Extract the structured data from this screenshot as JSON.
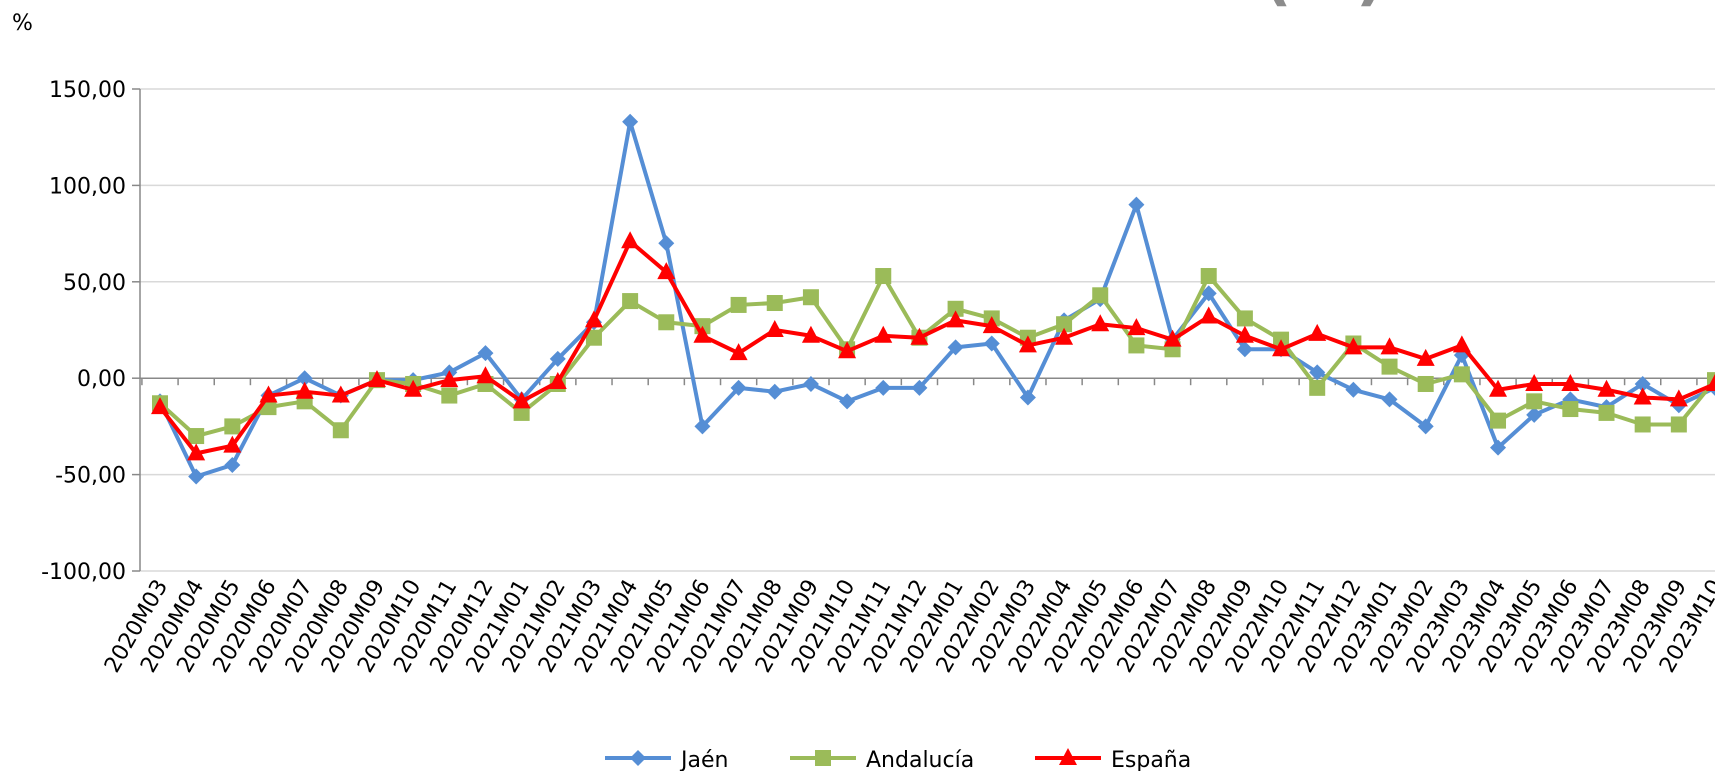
{
  "chart_data": {
    "type": "line",
    "title": "DE LAS EXPORTACIONES (%)",
    "y_label": "%",
    "categories": [
      "2020M03",
      "2020M04",
      "2020M05",
      "2020M06",
      "2020M07",
      "2020M08",
      "2020M09",
      "2020M10",
      "2020M11",
      "2020M12",
      "2021M01",
      "2021M02",
      "2021M03",
      "2021M04",
      "2021M05",
      "2021M06",
      "2021M07",
      "2021M08",
      "2021M09",
      "2021M10",
      "2021M11",
      "2021M12",
      "2022M01",
      "2022M02",
      "2022M03",
      "2022M04",
      "2022M05",
      "2022M06",
      "2022M07",
      "2022M08",
      "2022M09",
      "2022M10",
      "2022M11",
      "2022M12",
      "2023M01",
      "2023M02",
      "2023M03",
      "2023M04",
      "2023M05",
      "2023M06",
      "2023M07",
      "2023M08",
      "2023M09",
      "2023M10"
    ],
    "series": [
      {
        "name": "Jaén",
        "color": "#558ed5",
        "marker": "diamond",
        "values": [
          -12,
          -51,
          -45,
          -9,
          0,
          -9,
          -1,
          -1,
          3,
          13,
          -11,
          10,
          29,
          133,
          70,
          -25,
          -5,
          -7,
          -3,
          -12,
          -5,
          -5,
          16,
          18,
          -10,
          30,
          41,
          90,
          20,
          44,
          15,
          15,
          3,
          -6,
          -11,
          -25,
          12,
          -36,
          -19,
          -11,
          -15,
          -3,
          -14,
          -5
        ]
      },
      {
        "name": "Andalucía",
        "color": "#9bbb59",
        "marker": "square",
        "values": [
          -13,
          -30,
          -25,
          -15,
          -12,
          -27,
          -1,
          -3,
          -9,
          -3,
          -18,
          -3,
          21,
          40,
          29,
          27,
          38,
          39,
          42,
          15,
          53,
          21,
          36,
          31,
          21,
          28,
          43,
          17,
          15,
          53,
          31,
          20,
          -5,
          18,
          6,
          -3,
          2,
          -22,
          -12,
          -16,
          -18,
          -24,
          -24,
          -1
        ]
      },
      {
        "name": "España",
        "color": "#ff0000",
        "marker": "triangle",
        "values": [
          -15,
          -39,
          -35,
          -9,
          -7,
          -9,
          -1,
          -6,
          -1,
          1,
          -12,
          -2,
          30,
          71,
          55,
          22,
          13,
          25,
          22,
          14,
          22,
          21,
          30,
          27,
          17,
          21,
          28,
          26,
          20,
          32,
          22,
          15,
          23,
          16,
          16,
          10,
          17,
          -6,
          -3,
          -3,
          -6,
          -10,
          -11,
          -3
        ]
      }
    ],
    "ylim": [
      -100,
      150
    ],
    "yticks": [
      {
        "value": -100,
        "label": "-100,00"
      },
      {
        "value": -50,
        "label": "-50,00"
      },
      {
        "value": 0,
        "label": "0,00"
      },
      {
        "value": 50,
        "label": "50,00"
      },
      {
        "value": 100,
        "label": "100,00"
      },
      {
        "value": 150,
        "label": "150,00"
      }
    ],
    "legend": "bottom"
  }
}
